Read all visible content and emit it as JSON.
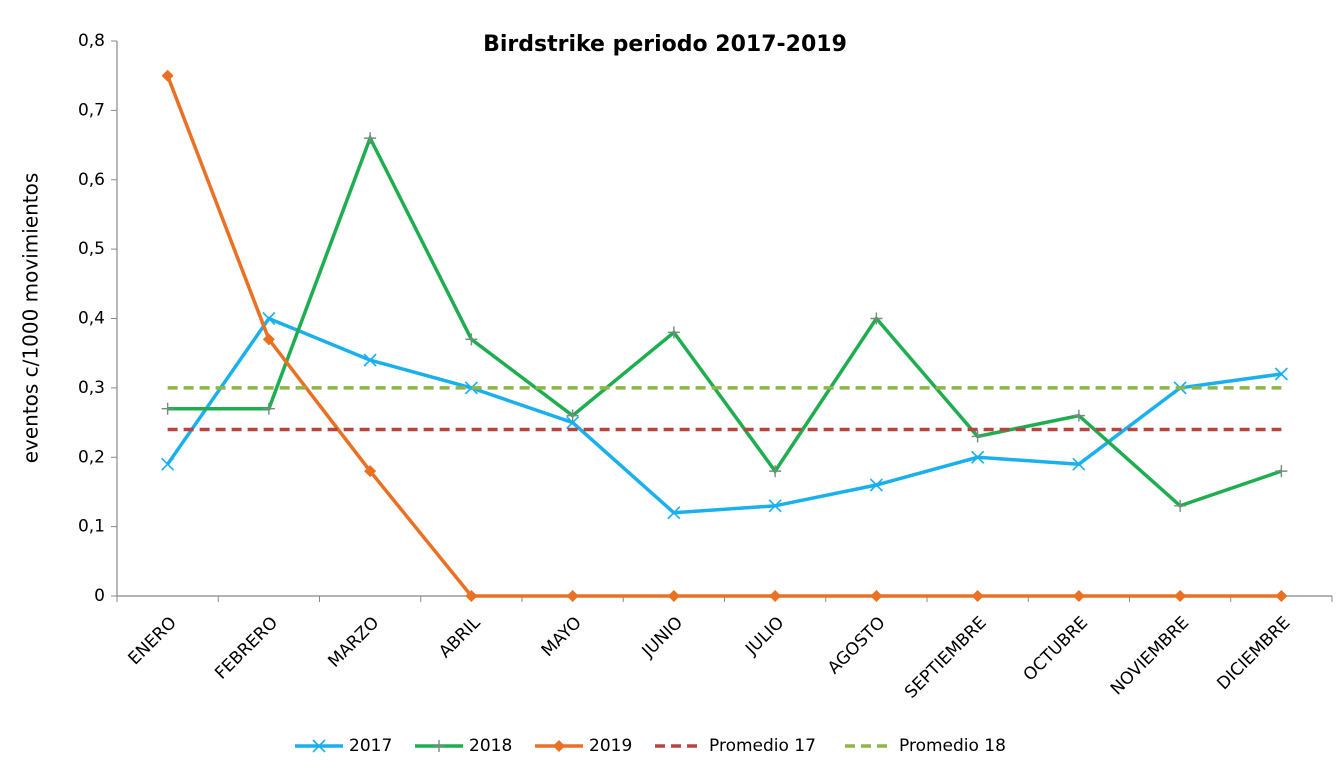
{
  "chart_data": {
    "type": "line",
    "title": "Birdstrike periodo 2017-2019",
    "y_label": "eventos c/1000 movimientos",
    "categories": [
      "ENERO",
      "FEBRERO",
      "MARZO",
      "ABRIL",
      "MAYO",
      "JUNIO",
      "JULIO",
      "AGOSTO",
      "SEPTIEMBRE",
      "OCTUBRE",
      "NOVIEMBRE",
      "DICIEMBRE"
    ],
    "ylim": [
      0,
      0.8
    ],
    "yticks": [
      0,
      {
        "value": 0.1,
        "label": "0,1"
      },
      {
        "value": 0.2,
        "label": "0,2"
      },
      {
        "value": 0.3,
        "label": "0,3"
      },
      {
        "value": 0.4,
        "label": "0,4"
      },
      {
        "value": 0.5,
        "label": "0,5"
      },
      {
        "value": 0.6,
        "label": "0,6"
      },
      {
        "value": 0.7,
        "label": "0,7"
      },
      {
        "value": 0.8,
        "label": "0,8"
      }
    ],
    "grid": false,
    "legend": "bottom",
    "series": [
      {
        "name": "2017",
        "color": "#1ab0ee",
        "marker": "x",
        "dashed": false,
        "values": [
          0.19,
          0.4,
          0.34,
          0.3,
          0.25,
          0.12,
          0.13,
          0.16,
          0.2,
          0.19,
          0.3,
          0.32
        ]
      },
      {
        "name": "2018",
        "color": "#1fae4f",
        "marker": "plus",
        "dashed": false,
        "values": [
          0.27,
          0.27,
          0.66,
          0.37,
          0.26,
          0.38,
          0.18,
          0.4,
          0.23,
          0.26,
          0.13,
          0.18
        ]
      },
      {
        "name": "2019",
        "color": "#ea7123",
        "marker": "diamond",
        "dashed": false,
        "values": [
          0.75,
          0.37,
          0.18,
          0,
          0,
          0,
          0,
          0,
          0,
          0,
          0,
          0
        ]
      },
      {
        "name": "Promedio 17",
        "color": "#b8443f",
        "marker": "none",
        "dashed": true,
        "values": [
          0.24,
          0.24,
          0.24,
          0.24,
          0.24,
          0.24,
          0.24,
          0.24,
          0.24,
          0.24,
          0.24,
          0.24
        ]
      },
      {
        "name": "Promedio 18",
        "color": "#8db649",
        "marker": "none",
        "dashed": true,
        "values": [
          0.3,
          0.3,
          0.3,
          0.3,
          0.3,
          0.3,
          0.3,
          0.3,
          0.3,
          0.3,
          0.3,
          0.3
        ]
      }
    ]
  }
}
